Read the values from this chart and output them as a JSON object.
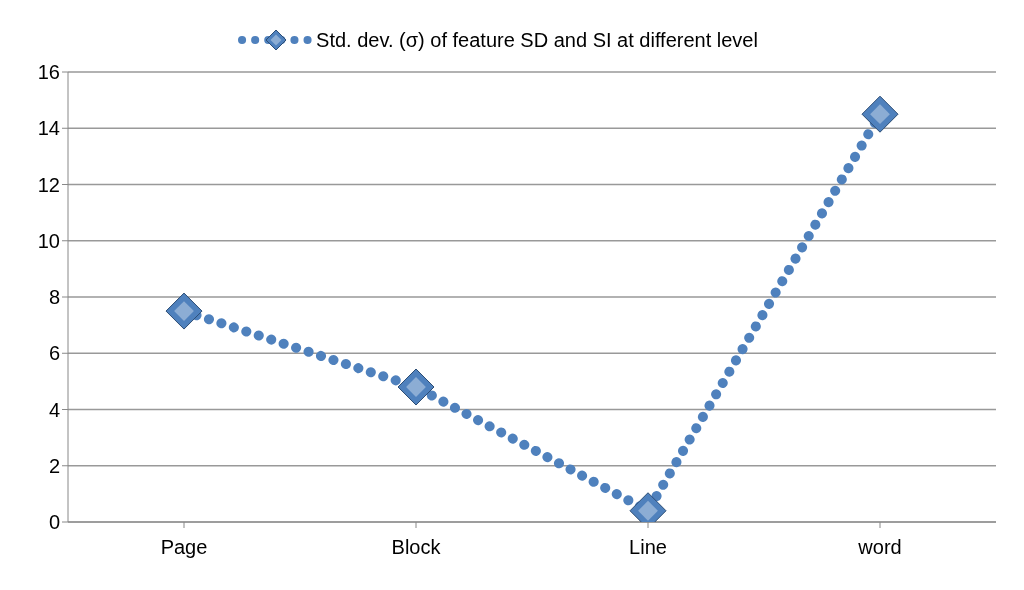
{
  "chart_data": {
    "type": "line",
    "categories": [
      "Page",
      "Block",
      "Line",
      "word"
    ],
    "series": [
      {
        "name": "Std. dev. (σ) of feature SD and SI at different level",
        "color": "#4f81bd",
        "values": [
          7.5,
          4.8,
          0.4,
          14.5
        ]
      }
    ],
    "ylim": [
      0,
      16
    ],
    "yticks": [
      0,
      2,
      4,
      6,
      8,
      10,
      12,
      14,
      16
    ],
    "grid": "y",
    "legend": "top",
    "marker": "diamond",
    "line_style": "dotted"
  }
}
